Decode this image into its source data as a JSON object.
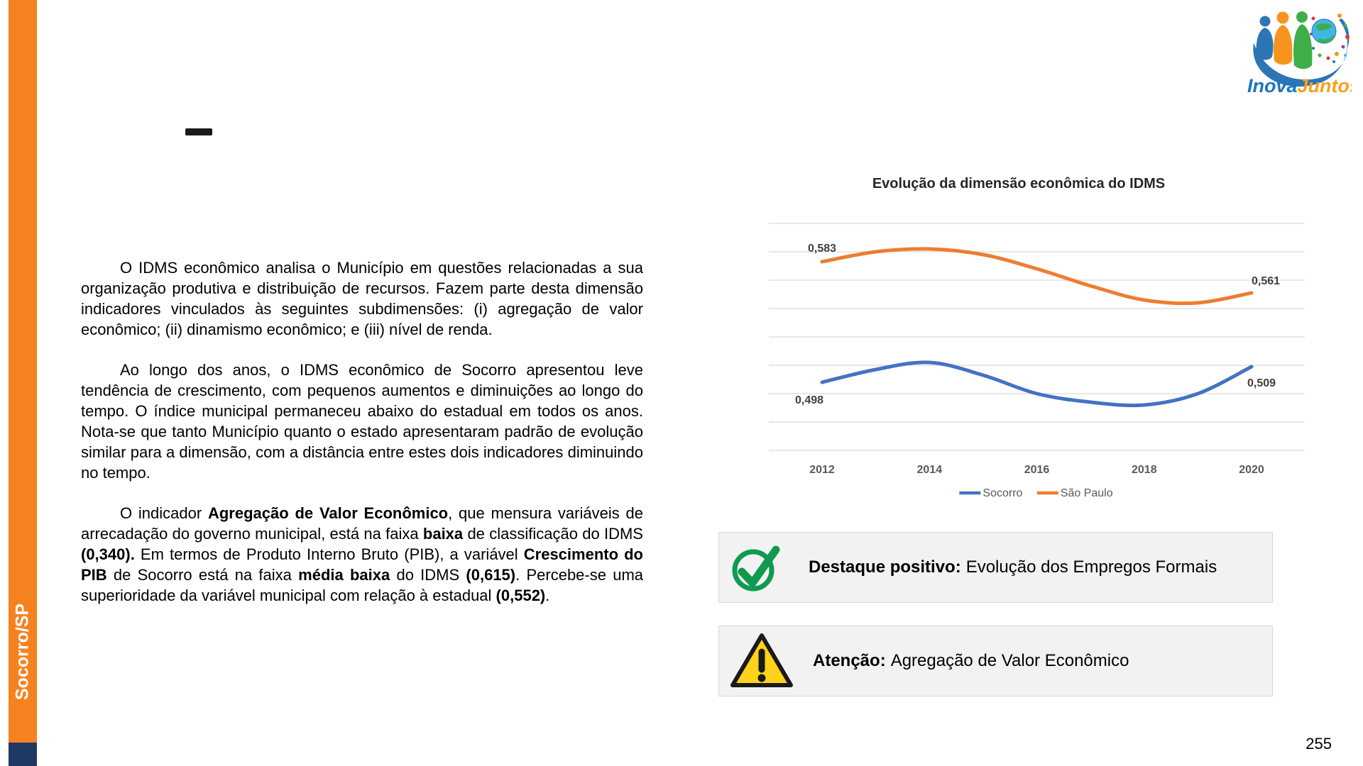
{
  "page": {
    "number": "255"
  },
  "sidebar": {
    "label": "Socorro/SP",
    "bar_color": "#F5821F",
    "footer_color": "#1F3864"
  },
  "logo": {
    "part1": "Inova",
    "part2": "Juntos",
    "part1_color": "#1B75BC",
    "part2_color": "#F9A01B"
  },
  "paragraphs": [
    {
      "segments": [
        {
          "t": "O IDMS econômico analisa o Município em questões relacionadas a sua organização produtiva e distribuição de recursos. Fazem parte desta dimensão indicadores vinculados às seguintes subdimensões: (i) agregação de valor econômico; (ii) dinamismo econômico; e (iii) nível de renda.",
          "b": false
        }
      ]
    },
    {
      "segments": [
        {
          "t": "Ao longo dos anos, o IDMS econômico de Socorro apresentou leve tendência de crescimento, com pequenos aumentos e diminuições ao longo do tempo. O índice municipal permaneceu abaixo do estadual em todos os anos. Nota-se que tanto Município quanto o estado apresentaram padrão de evolução similar para a dimensão, com a distância entre estes dois indicadores diminuindo no tempo.",
          "b": false
        }
      ]
    },
    {
      "segments": [
        {
          "t": "O indicador ",
          "b": false
        },
        {
          "t": "Agregação de Valor Econômico",
          "b": true
        },
        {
          "t": ", que mensura variáveis de arrecadação do governo municipal, está na faixa ",
          "b": false
        },
        {
          "t": "baixa",
          "b": true
        },
        {
          "t": " de classificação do IDMS ",
          "b": false
        },
        {
          "t": "(0,340).",
          "b": true
        },
        {
          "t": " Em termos de Produto Interno Bruto (PIB), a variável ",
          "b": false
        },
        {
          "t": "Crescimento do PIB",
          "b": true
        },
        {
          "t": " de Socorro está na faixa ",
          "b": false
        },
        {
          "t": "média baixa",
          "b": true
        },
        {
          "t": " do IDMS ",
          "b": false
        },
        {
          "t": "(0,615)",
          "b": true
        },
        {
          "t": ". Percebe-se uma superioridade da variável municipal com relação à estadual ",
          "b": false
        },
        {
          "t": "(0,552)",
          "b": true
        },
        {
          "t": ".",
          "b": false
        }
      ]
    }
  ],
  "chart_data": {
    "type": "line",
    "title": "Evolução da dimensão econômica do IDMS",
    "x": [
      2012,
      2013,
      2014,
      2015,
      2016,
      2017,
      2018,
      2019,
      2020
    ],
    "x_tick_labels": [
      "2012",
      "2014",
      "2016",
      "2018",
      "2020"
    ],
    "series": [
      {
        "name": "Socorro",
        "color": "#4472C4",
        "values": [
          0.498,
          0.507,
          0.512,
          0.503,
          0.49,
          0.484,
          0.482,
          0.49,
          0.509
        ],
        "endpoint_labels": [
          "0,498",
          "0,509"
        ]
      },
      {
        "name": "São Paulo",
        "color": "#ED7D31",
        "values": [
          0.583,
          0.59,
          0.592,
          0.588,
          0.578,
          0.566,
          0.556,
          0.554,
          0.561
        ],
        "endpoint_labels": [
          "0,583",
          "0,561"
        ]
      }
    ],
    "ylim": [
      0.45,
      0.61
    ],
    "grid_step": 0.02,
    "grid": true,
    "legend_position": "bottom",
    "number_format": "pt-BR"
  },
  "callouts": [
    {
      "icon": "check-circle-icon",
      "label": "Destaque positivo:",
      "text": "Evolução dos Empregos Formais",
      "accent_color": "#0F9B4F"
    },
    {
      "icon": "warning-icon",
      "label": "Atenção:",
      "text": "Agregação de Valor Econômico",
      "accent_color": "#FFD21C"
    }
  ]
}
